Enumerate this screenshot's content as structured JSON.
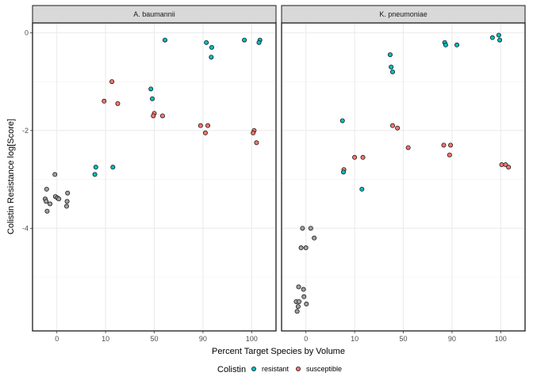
{
  "chart_data": {
    "type": "scatter",
    "xlabel": "Percent Target Species by Volume",
    "ylabel": "Colistin Resistance log[Score]",
    "x_ticks": [
      "0",
      "10",
      "50",
      "90",
      "100"
    ],
    "y_ticks": [
      "0",
      "-2",
      "-4"
    ],
    "ylim": [
      -6.1,
      0.2
    ],
    "xlim": [
      -0.5,
      4.5
    ],
    "grid": true,
    "legend": {
      "title": "Colistin",
      "position": "bottom",
      "entries": [
        {
          "key": "resistant",
          "label": "resistant",
          "color": "#00BFC4"
        },
        {
          "key": "susceptible",
          "label": "susceptible",
          "color": "#F8766D"
        }
      ]
    },
    "colors": {
      "resistant": "#00BFC4",
      "susceptible": "#F8766D",
      "zero": "#A0A0A0"
    },
    "panels": [
      {
        "title": "A. baumannii",
        "points": [
          {
            "x": -0.21,
            "y": -3.2,
            "group": "zero"
          },
          {
            "x": -0.24,
            "y": -3.4,
            "group": "zero"
          },
          {
            "x": -0.22,
            "y": -3.45,
            "group": "zero"
          },
          {
            "x": -0.14,
            "y": -3.5,
            "group": "zero"
          },
          {
            "x": -0.2,
            "y": -3.65,
            "group": "zero"
          },
          {
            "x": -0.04,
            "y": -2.9,
            "group": "zero"
          },
          {
            "x": -0.03,
            "y": -3.35,
            "group": "zero"
          },
          {
            "x": 0.01,
            "y": -3.38,
            "group": "zero"
          },
          {
            "x": 0.04,
            "y": -3.4,
            "group": "zero"
          },
          {
            "x": 0.22,
            "y": -3.28,
            "group": "zero"
          },
          {
            "x": 0.21,
            "y": -3.45,
            "group": "zero"
          },
          {
            "x": 0.2,
            "y": -3.55,
            "group": "zero"
          },
          {
            "x": 0.8,
            "y": -2.75,
            "group": "resistant"
          },
          {
            "x": 0.78,
            "y": -2.9,
            "group": "resistant"
          },
          {
            "x": 1.15,
            "y": -2.75,
            "group": "resistant"
          },
          {
            "x": 0.97,
            "y": -1.4,
            "group": "susceptible"
          },
          {
            "x": 1.13,
            "y": -1.0,
            "group": "susceptible"
          },
          {
            "x": 1.25,
            "y": -1.45,
            "group": "susceptible"
          },
          {
            "x": 1.93,
            "y": -1.15,
            "group": "resistant"
          },
          {
            "x": 1.96,
            "y": -1.35,
            "group": "resistant"
          },
          {
            "x": 2.0,
            "y": -1.65,
            "group": "susceptible"
          },
          {
            "x": 1.98,
            "y": -1.7,
            "group": "susceptible"
          },
          {
            "x": 2.17,
            "y": -1.7,
            "group": "susceptible"
          },
          {
            "x": 2.22,
            "y": -0.15,
            "group": "resistant"
          },
          {
            "x": 2.95,
            "y": -1.9,
            "group": "susceptible"
          },
          {
            "x": 3.05,
            "y": -2.05,
            "group": "susceptible"
          },
          {
            "x": 3.1,
            "y": -1.9,
            "group": "susceptible"
          },
          {
            "x": 3.07,
            "y": -0.2,
            "group": "resistant"
          },
          {
            "x": 3.18,
            "y": -0.3,
            "group": "resistant"
          },
          {
            "x": 3.17,
            "y": -0.5,
            "group": "resistant"
          },
          {
            "x": 3.85,
            "y": -0.15,
            "group": "resistant"
          },
          {
            "x": 4.17,
            "y": -0.15,
            "group": "resistant"
          },
          {
            "x": 4.15,
            "y": -0.2,
            "group": "resistant"
          },
          {
            "x": 4.05,
            "y": -2.0,
            "group": "susceptible"
          },
          {
            "x": 4.03,
            "y": -2.05,
            "group": "susceptible"
          },
          {
            "x": 4.1,
            "y": -2.25,
            "group": "susceptible"
          }
        ]
      },
      {
        "title": "K. pneumoniae",
        "points": [
          {
            "x": -0.07,
            "y": -4.0,
            "group": "zero"
          },
          {
            "x": 0.1,
            "y": -4.0,
            "group": "zero"
          },
          {
            "x": 0.17,
            "y": -4.2,
            "group": "zero"
          },
          {
            "x": -0.1,
            "y": -4.4,
            "group": "zero"
          },
          {
            "x": 0.0,
            "y": -4.4,
            "group": "zero"
          },
          {
            "x": -0.15,
            "y": -5.2,
            "group": "zero"
          },
          {
            "x": -0.05,
            "y": -5.25,
            "group": "zero"
          },
          {
            "x": -0.04,
            "y": -5.4,
            "group": "zero"
          },
          {
            "x": -0.2,
            "y": -5.5,
            "group": "zero"
          },
          {
            "x": -0.16,
            "y": -5.6,
            "group": "zero"
          },
          {
            "x": -0.14,
            "y": -5.5,
            "group": "zero"
          },
          {
            "x": 0.01,
            "y": -5.55,
            "group": "zero"
          },
          {
            "x": -0.18,
            "y": -5.7,
            "group": "zero"
          },
          {
            "x": 0.75,
            "y": -1.8,
            "group": "resistant"
          },
          {
            "x": 0.78,
            "y": -2.8,
            "group": "susceptible"
          },
          {
            "x": 0.77,
            "y": -2.85,
            "group": "resistant"
          },
          {
            "x": 1.0,
            "y": -2.55,
            "group": "susceptible"
          },
          {
            "x": 1.17,
            "y": -2.55,
            "group": "susceptible"
          },
          {
            "x": 1.15,
            "y": -3.2,
            "group": "resistant"
          },
          {
            "x": 1.73,
            "y": -0.45,
            "group": "resistant"
          },
          {
            "x": 1.75,
            "y": -0.7,
            "group": "resistant"
          },
          {
            "x": 1.78,
            "y": -0.8,
            "group": "resistant"
          },
          {
            "x": 1.78,
            "y": -1.9,
            "group": "susceptible"
          },
          {
            "x": 1.88,
            "y": -1.95,
            "group": "susceptible"
          },
          {
            "x": 2.1,
            "y": -2.35,
            "group": "susceptible"
          },
          {
            "x": 2.83,
            "y": -2.3,
            "group": "susceptible"
          },
          {
            "x": 2.97,
            "y": -2.3,
            "group": "susceptible"
          },
          {
            "x": 2.95,
            "y": -2.5,
            "group": "susceptible"
          },
          {
            "x": 2.85,
            "y": -0.2,
            "group": "resistant"
          },
          {
            "x": 2.87,
            "y": -0.25,
            "group": "resistant"
          },
          {
            "x": 3.1,
            "y": -0.25,
            "group": "resistant"
          },
          {
            "x": 3.83,
            "y": -0.1,
            "group": "resistant"
          },
          {
            "x": 3.96,
            "y": -0.05,
            "group": "resistant"
          },
          {
            "x": 3.98,
            "y": -0.15,
            "group": "resistant"
          },
          {
            "x": 4.02,
            "y": -2.7,
            "group": "susceptible"
          },
          {
            "x": 4.1,
            "y": -2.7,
            "group": "susceptible"
          },
          {
            "x": 4.16,
            "y": -2.75,
            "group": "susceptible"
          }
        ]
      }
    ]
  }
}
